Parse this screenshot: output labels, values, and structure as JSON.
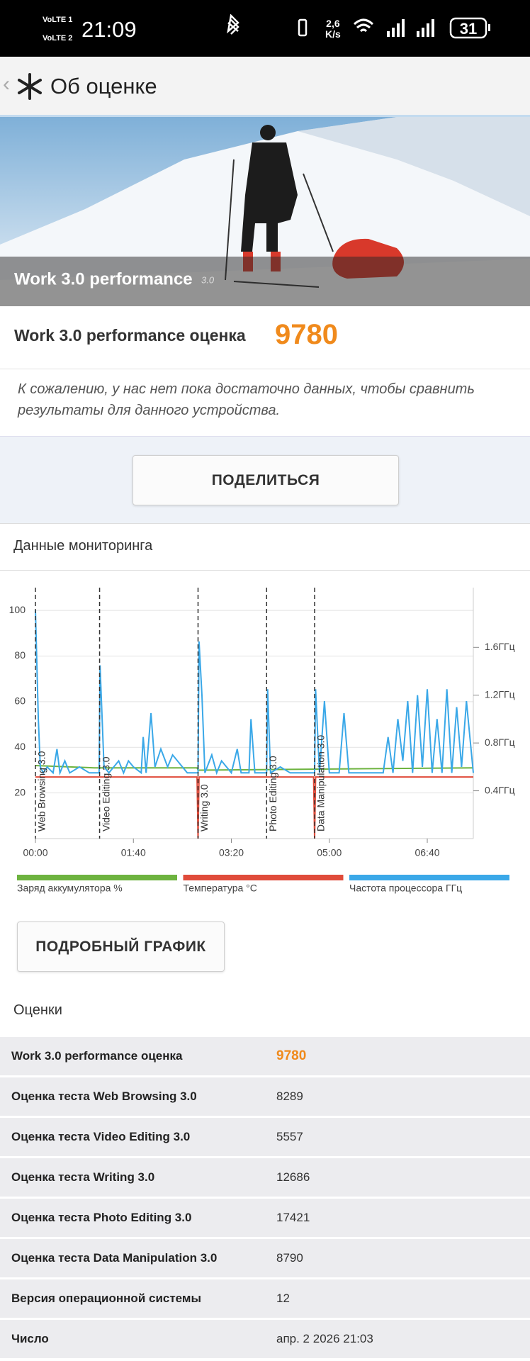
{
  "status_bar": {
    "sim1": "VoLTE 1",
    "sim2": "VoLTE 2",
    "time": "21:09",
    "speed": "2,6",
    "speed_unit": "K/s",
    "battery": 31
  },
  "header": {
    "title": "Об оценке"
  },
  "hero": {
    "title": "Work 3.0 performance",
    "version": "3.0"
  },
  "score": {
    "label": "Work 3.0 performance оценка",
    "value": 9780
  },
  "note": "К сожалению, у нас нет пока достаточно данных, чтобы сравнить результаты для данного устройства.",
  "share_button": "ПОДЕЛИТЬСЯ",
  "monitoring_title": "Данные мониторинга",
  "chart_data": {
    "type": "line",
    "xlim": [
      0,
      447
    ],
    "xticks": [
      {
        "value": 0,
        "label": "00:00"
      },
      {
        "value": 100,
        "label": "01:40"
      },
      {
        "value": 200,
        "label": "03:20"
      },
      {
        "value": 300,
        "label": "05:00"
      },
      {
        "value": 400,
        "label": "06:40"
      }
    ],
    "ylim": [
      0,
      110
    ],
    "yticks": [
      20,
      40,
      60,
      80,
      100
    ],
    "y2lim": [
      0,
      2.1
    ],
    "y2ticks": [
      {
        "value": 0.4,
        "label": "0.4ГГц"
      },
      {
        "value": 0.8,
        "label": "0.8ГГц"
      },
      {
        "value": 1.2,
        "label": "1.2ГГц"
      },
      {
        "value": 1.6,
        "label": "1.6ГГц"
      }
    ],
    "grid": true,
    "markers": [
      {
        "x": 0,
        "label": "Web Browsing 3.0"
      },
      {
        "x": 65.5,
        "label": "Video Editing 3.0"
      },
      {
        "x": 166,
        "label": "Writing 3.0"
      },
      {
        "x": 236,
        "label": "Photo Editing 3.0"
      },
      {
        "x": 285,
        "label": "Data Manipulation 3.0"
      }
    ],
    "series": [
      {
        "name": "Заряд аккумулятора %",
        "color": "#6db33f",
        "x": [
          0,
          60,
          165,
          166,
          447
        ],
        "values": [
          32,
          31,
          31,
          30,
          31
        ]
      },
      {
        "name": "Температура °C",
        "color": "#e04b3a",
        "x": [
          0,
          165,
          166,
          167,
          284,
          285,
          286,
          447
        ],
        "values": [
          27,
          27,
          0,
          27,
          27,
          0,
          27,
          27
        ]
      },
      {
        "name": "Частота процессора ГГц",
        "color": "#3aa8e8",
        "axis": "y2",
        "x": [
          0,
          3,
          5,
          8,
          12,
          18,
          22,
          25,
          30,
          35,
          45,
          55,
          65,
          66,
          70,
          75,
          85,
          90,
          95,
          100,
          108,
          110,
          113,
          118,
          122,
          128,
          135,
          140,
          150,
          155,
          166,
          167,
          170,
          173,
          180,
          185,
          190,
          200,
          206,
          210,
          218,
          220,
          224,
          236,
          237,
          240,
          250,
          260,
          270,
          285,
          286,
          290,
          295,
          300,
          310,
          315,
          320,
          330,
          340,
          355,
          360,
          365,
          370,
          375,
          380,
          385,
          390,
          395,
          400,
          405,
          410,
          415,
          420,
          425,
          430,
          435,
          440,
          447
        ],
        "values": [
          1.91,
          1.0,
          0.6,
          0.55,
          0.6,
          0.55,
          0.75,
          0.55,
          0.65,
          0.55,
          0.6,
          0.55,
          0.55,
          1.45,
          0.6,
          0.55,
          0.65,
          0.55,
          0.65,
          0.6,
          0.55,
          0.85,
          0.55,
          1.05,
          0.6,
          0.75,
          0.6,
          0.7,
          0.6,
          0.55,
          0.55,
          1.65,
          1.2,
          0.55,
          0.7,
          0.55,
          0.65,
          0.55,
          0.75,
          0.55,
          0.55,
          1.0,
          0.55,
          0.55,
          1.25,
          0.55,
          0.6,
          0.55,
          0.55,
          0.55,
          1.25,
          0.55,
          1.15,
          0.55,
          0.55,
          1.05,
          0.55,
          0.55,
          0.55,
          0.55,
          0.85,
          0.55,
          1.0,
          0.65,
          1.15,
          0.55,
          1.2,
          0.6,
          1.25,
          0.55,
          1.0,
          0.55,
          1.25,
          0.55,
          1.1,
          0.6,
          1.15,
          0.55
        ]
      }
    ]
  },
  "detail_button": "ПОДРОБНЫЙ ГРАФИК",
  "scores": {
    "title": "Оценки",
    "rows": [
      [
        "Work 3.0 performance оценка",
        9780
      ],
      [
        "Оценка теста Web Browsing 3.0",
        8289
      ],
      [
        "Оценка теста Video Editing 3.0",
        5557
      ],
      [
        "Оценка теста Writing 3.0",
        12686
      ],
      [
        "Оценка теста Photo Editing 3.0",
        17421
      ],
      [
        "Оценка теста Data Manipulation 3.0",
        8790
      ],
      [
        "Версия операционной системы",
        12
      ],
      [
        "Число",
        "апр. 2 2026 21:03"
      ]
    ]
  }
}
